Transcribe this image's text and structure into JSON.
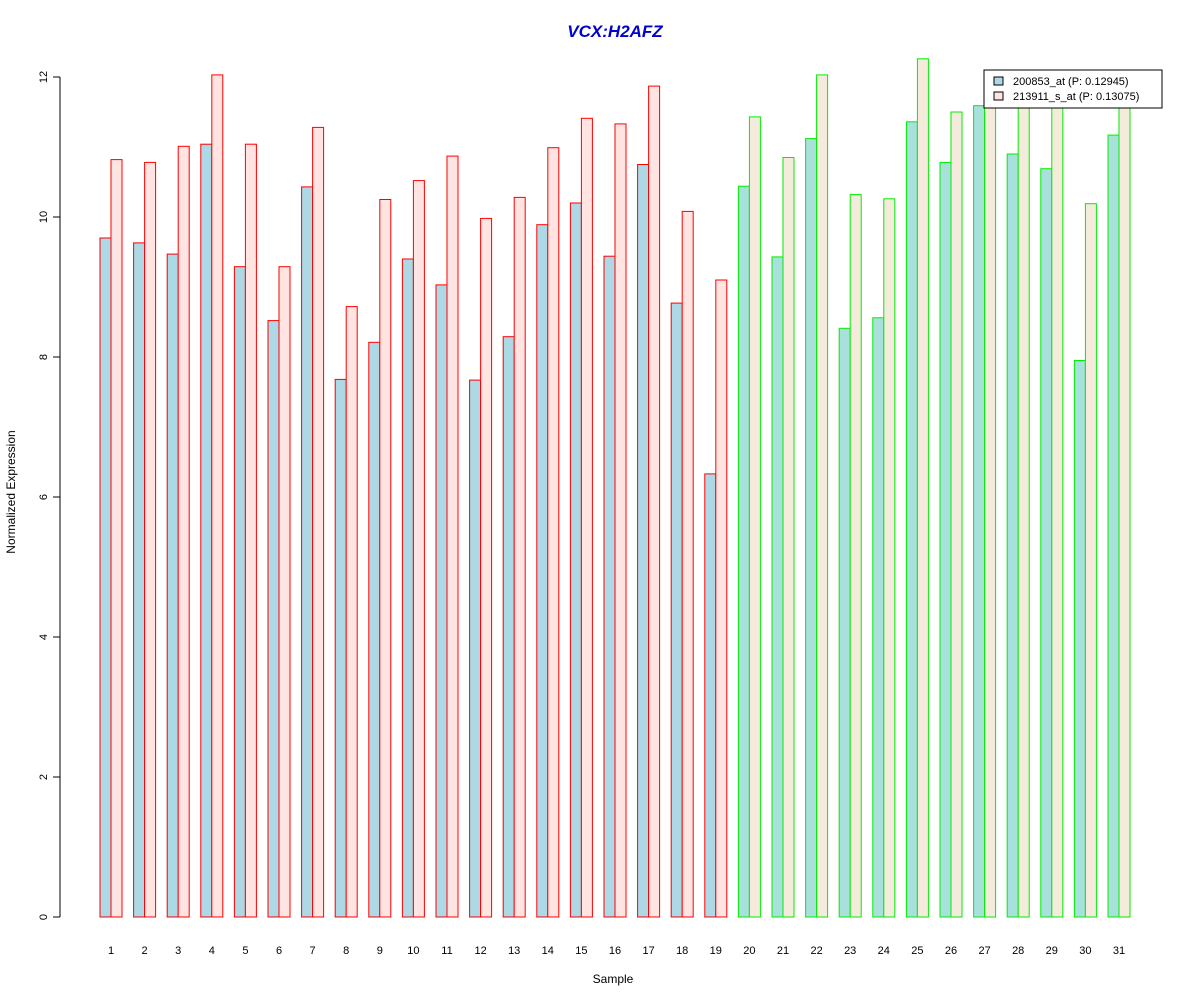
{
  "chart_data": {
    "type": "bar",
    "title": "VCX:H2AFZ",
    "xlabel": "Sample",
    "ylabel": "Normalized Expression",
    "ylim": [
      0,
      12
    ],
    "yticks": [
      "0",
      "2",
      "4",
      "6",
      "8",
      "10",
      "12"
    ],
    "categories": [
      "1",
      "2",
      "3",
      "4",
      "5",
      "6",
      "7",
      "8",
      "9",
      "10",
      "11",
      "12",
      "13",
      "14",
      "15",
      "16",
      "17",
      "18",
      "19",
      "20",
      "21",
      "22",
      "23",
      "24",
      "25",
      "26",
      "27",
      "28",
      "29",
      "30",
      "31"
    ],
    "series": [
      {
        "name": "200853_at (P: 0.12945)",
        "values": [
          9.7,
          9.63,
          9.47,
          11.04,
          9.29,
          8.52,
          10.43,
          7.68,
          8.21,
          9.4,
          9.03,
          7.67,
          8.29,
          9.89,
          10.2,
          9.44,
          10.75,
          8.77,
          6.33,
          10.44,
          9.43,
          11.12,
          8.41,
          8.56,
          11.36,
          10.78,
          11.59,
          10.9,
          10.69,
          7.95,
          11.17
        ]
      },
      {
        "name": "213911_s_at (P: 0.13075)",
        "values": [
          10.82,
          10.78,
          11.01,
          12.03,
          11.04,
          9.29,
          11.28,
          8.72,
          10.25,
          10.52,
          10.87,
          9.98,
          10.28,
          10.99,
          11.41,
          11.33,
          11.87,
          10.08,
          9.1,
          11.43,
          10.85,
          12.03,
          10.32,
          10.26,
          12.26,
          11.5,
          11.59,
          11.59,
          11.59,
          10.19,
          11.59
        ]
      }
    ],
    "groups": [
      {
        "samples": [
          1,
          19
        ],
        "border_color": "#ff0000",
        "fill_series1": "#add8e6",
        "fill_series2": "#ffe4e1"
      },
      {
        "samples": [
          20,
          31
        ],
        "border_color": "#00ee00",
        "fill_series1": "#a8e0dc",
        "fill_series2": "#f5ebdc"
      }
    ],
    "legend_position": "top-right",
    "legend_fills": [
      "#add8e6",
      "#ffe4e1"
    ],
    "grid": false
  }
}
